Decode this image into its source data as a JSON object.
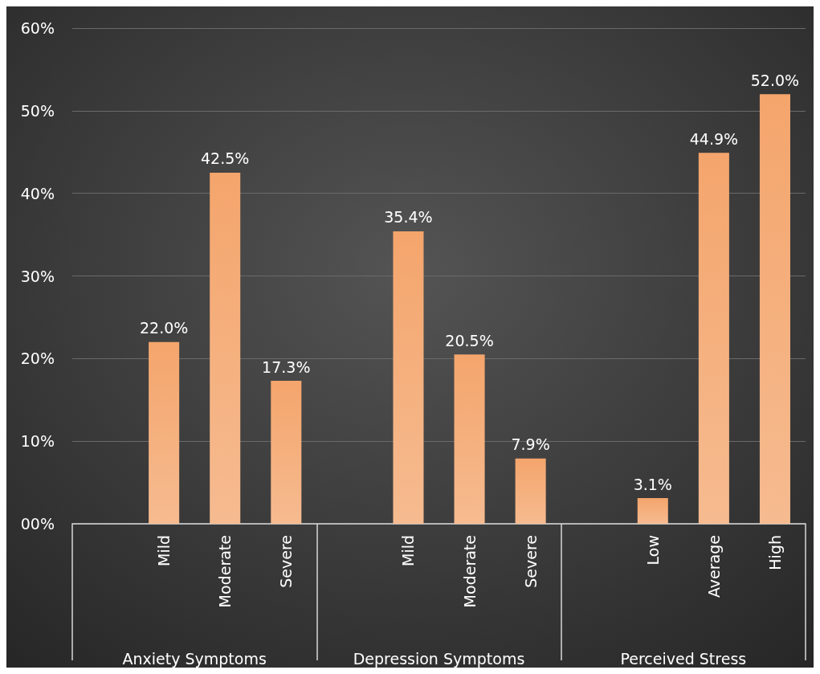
{
  "chart_data": {
    "type": "bar",
    "categories": [
      null,
      "Mild",
      "Moderate",
      "Severe",
      null,
      "Mild",
      "Moderate",
      "Severe",
      null,
      "Low",
      "Average",
      "High"
    ],
    "values": [
      null,
      22.0,
      42.5,
      17.3,
      null,
      35.4,
      20.5,
      7.9,
      null,
      3.1,
      44.9,
      52.0
    ],
    "value_labels": [
      null,
      "22.0%",
      "42.5%",
      "17.3%",
      null,
      "35.4%",
      "20.5%",
      "7.9%",
      null,
      "3.1%",
      "44.9%",
      "52.0%"
    ],
    "color": "#f4a56c",
    "ylim": [
      0,
      60
    ],
    "yticks": [
      {
        "value": 0,
        "label": "00%"
      },
      {
        "value": 10,
        "label": "10%"
      },
      {
        "value": 20,
        "label": "20%"
      },
      {
        "value": 30,
        "label": "30%"
      },
      {
        "value": 40,
        "label": "40%"
      },
      {
        "value": 50,
        "label": "50%"
      },
      {
        "value": 60,
        "label": "60%"
      }
    ],
    "grid": "y",
    "annotations": [
      "Anxiety Symptoms",
      "Depression Symptoms",
      "Perceived Stress"
    ]
  }
}
